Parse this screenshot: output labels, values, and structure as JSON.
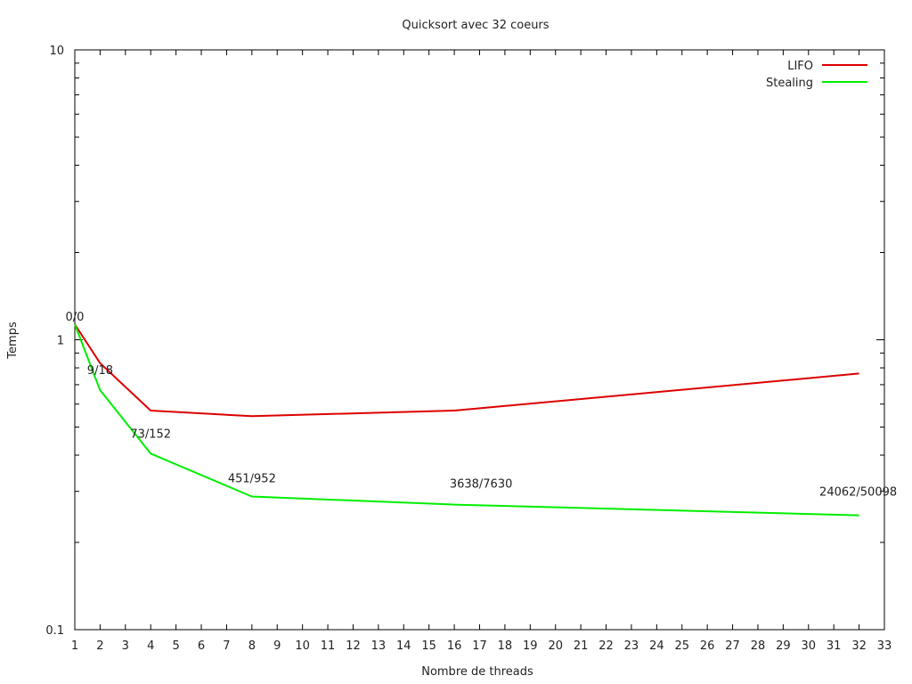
{
  "chart_data": {
    "type": "line",
    "title": "Quicksort avec 32 coeurs",
    "xlabel": "Nombre de threads",
    "ylabel": "Temps",
    "xlim": [
      1,
      33
    ],
    "ylim": [
      0.1,
      10
    ],
    "yscale": "log",
    "grid": false,
    "legend_position": "top-right",
    "x_ticks": [
      "1",
      "2",
      "3",
      "4",
      "5",
      "6",
      "7",
      "8",
      "9",
      "10",
      "11",
      "12",
      "13",
      "14",
      "15",
      "16",
      "17",
      "18",
      "19",
      "20",
      "21",
      "22",
      "23",
      "24",
      "25",
      "26",
      "27",
      "28",
      "29",
      "30",
      "31",
      "32",
      "33"
    ],
    "y_ticks": [
      {
        "value": 0.1,
        "label": "0.1"
      },
      {
        "value": 1,
        "label": "1"
      },
      {
        "value": 10,
        "label": "10"
      }
    ],
    "series": [
      {
        "name": "LIFO",
        "color": "#dd0000",
        "x": [
          1,
          2,
          4,
          8,
          16,
          32
        ],
        "y": [
          1.13,
          0.83,
          0.57,
          0.545,
          0.57,
          0.765
        ]
      },
      {
        "name": "Stealing",
        "color": "#00ee00",
        "x": [
          1,
          2,
          4,
          8,
          16,
          32
        ],
        "y": [
          1.13,
          0.67,
          0.405,
          0.288,
          0.27,
          0.248
        ]
      }
    ],
    "annotations": [
      {
        "text": "0/0",
        "x": 1
      },
      {
        "text": "9/18",
        "x": 2
      },
      {
        "text": "73/152",
        "x": 4
      },
      {
        "text": "451/952",
        "x": 8
      },
      {
        "text": "3638/7630",
        "x": 16
      },
      {
        "text": "24062/50098",
        "x": 32
      }
    ]
  }
}
